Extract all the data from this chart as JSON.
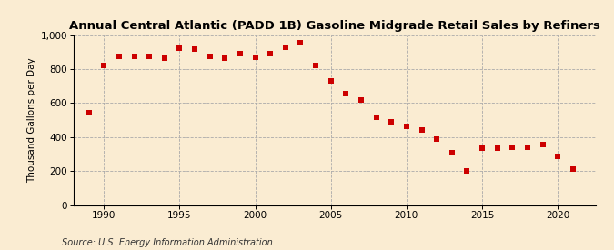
{
  "title": "Annual Central Atlantic (PADD 1B) Gasoline Midgrade Retail Sales by Refiners",
  "ylabel": "Thousand Gallons per Day",
  "source": "Source: U.S. Energy Information Administration",
  "background_color": "#faecd2",
  "marker_color": "#cc0000",
  "years": [
    1989,
    1990,
    1991,
    1992,
    1993,
    1994,
    1995,
    1996,
    1997,
    1998,
    1999,
    2000,
    2001,
    2002,
    2003,
    2004,
    2005,
    2006,
    2007,
    2008,
    2009,
    2010,
    2011,
    2012,
    2013,
    2014,
    2015,
    2016,
    2017,
    2018,
    2019,
    2020,
    2021
  ],
  "values": [
    545,
    820,
    875,
    875,
    875,
    865,
    920,
    915,
    875,
    865,
    890,
    870,
    890,
    930,
    955,
    820,
    730,
    655,
    620,
    515,
    490,
    465,
    440,
    390,
    305,
    200,
    335,
    335,
    340,
    340,
    355,
    285,
    210
  ],
  "ylim": [
    0,
    1000
  ],
  "yticks": [
    0,
    200,
    400,
    600,
    800,
    1000
  ],
  "xlim": [
    1988.0,
    2022.5
  ],
  "xticks": [
    1990,
    1995,
    2000,
    2005,
    2010,
    2015,
    2020
  ],
  "title_fontsize": 9.5,
  "label_fontsize": 7.5,
  "tick_fontsize": 7.5,
  "source_fontsize": 7,
  "grid_color": "#aaaaaa",
  "grid_style": "--",
  "marker_size": 4.5
}
